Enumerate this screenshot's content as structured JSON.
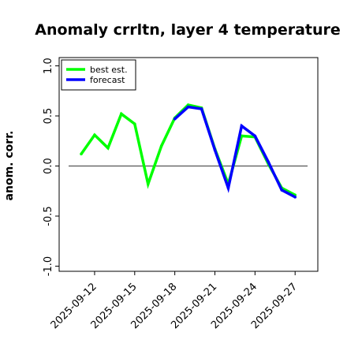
{
  "chart_data": {
    "type": "line",
    "title": "Anomaly crrltn, layer 4 temperature",
    "xlabel": "",
    "ylabel": "anom. corr.",
    "ylim": [
      -1.0,
      1.0
    ],
    "yticks": [
      -1.0,
      -0.5,
      0.0,
      0.5,
      1.0
    ],
    "ytick_labels": [
      "-1.0",
      "-0.5",
      "0.0",
      "0.5",
      "1.0"
    ],
    "x": [
      "2025-09-11",
      "2025-09-12",
      "2025-09-13",
      "2025-09-14",
      "2025-09-15",
      "2025-09-16",
      "2025-09-17",
      "2025-09-18",
      "2025-09-19",
      "2025-09-20",
      "2025-09-21",
      "2025-09-22",
      "2025-09-23",
      "2025-09-24",
      "2025-09-25",
      "2025-09-26",
      "2025-09-27"
    ],
    "xticks": [
      "2025-09-12",
      "2025-09-15",
      "2025-09-18",
      "2025-09-21",
      "2025-09-24",
      "2025-09-27"
    ],
    "highlighted_tick": "2025-09-18",
    "highlight_color": "#228b22",
    "zero_line": true,
    "grid": false,
    "legend_position": "top-left",
    "series": [
      {
        "name": "best est.",
        "color": "#00ff00",
        "values": [
          0.12,
          0.31,
          0.18,
          0.52,
          0.42,
          -0.18,
          0.2,
          0.48,
          0.61,
          0.58,
          0.17,
          -0.18,
          0.3,
          0.29,
          0.02,
          -0.22,
          -0.29
        ]
      },
      {
        "name": "forecast",
        "color": "#0000ff",
        "values": [
          null,
          null,
          null,
          null,
          null,
          null,
          null,
          0.47,
          0.59,
          0.57,
          0.16,
          -0.22,
          0.4,
          0.3,
          0.04,
          -0.24,
          -0.31
        ]
      }
    ]
  }
}
